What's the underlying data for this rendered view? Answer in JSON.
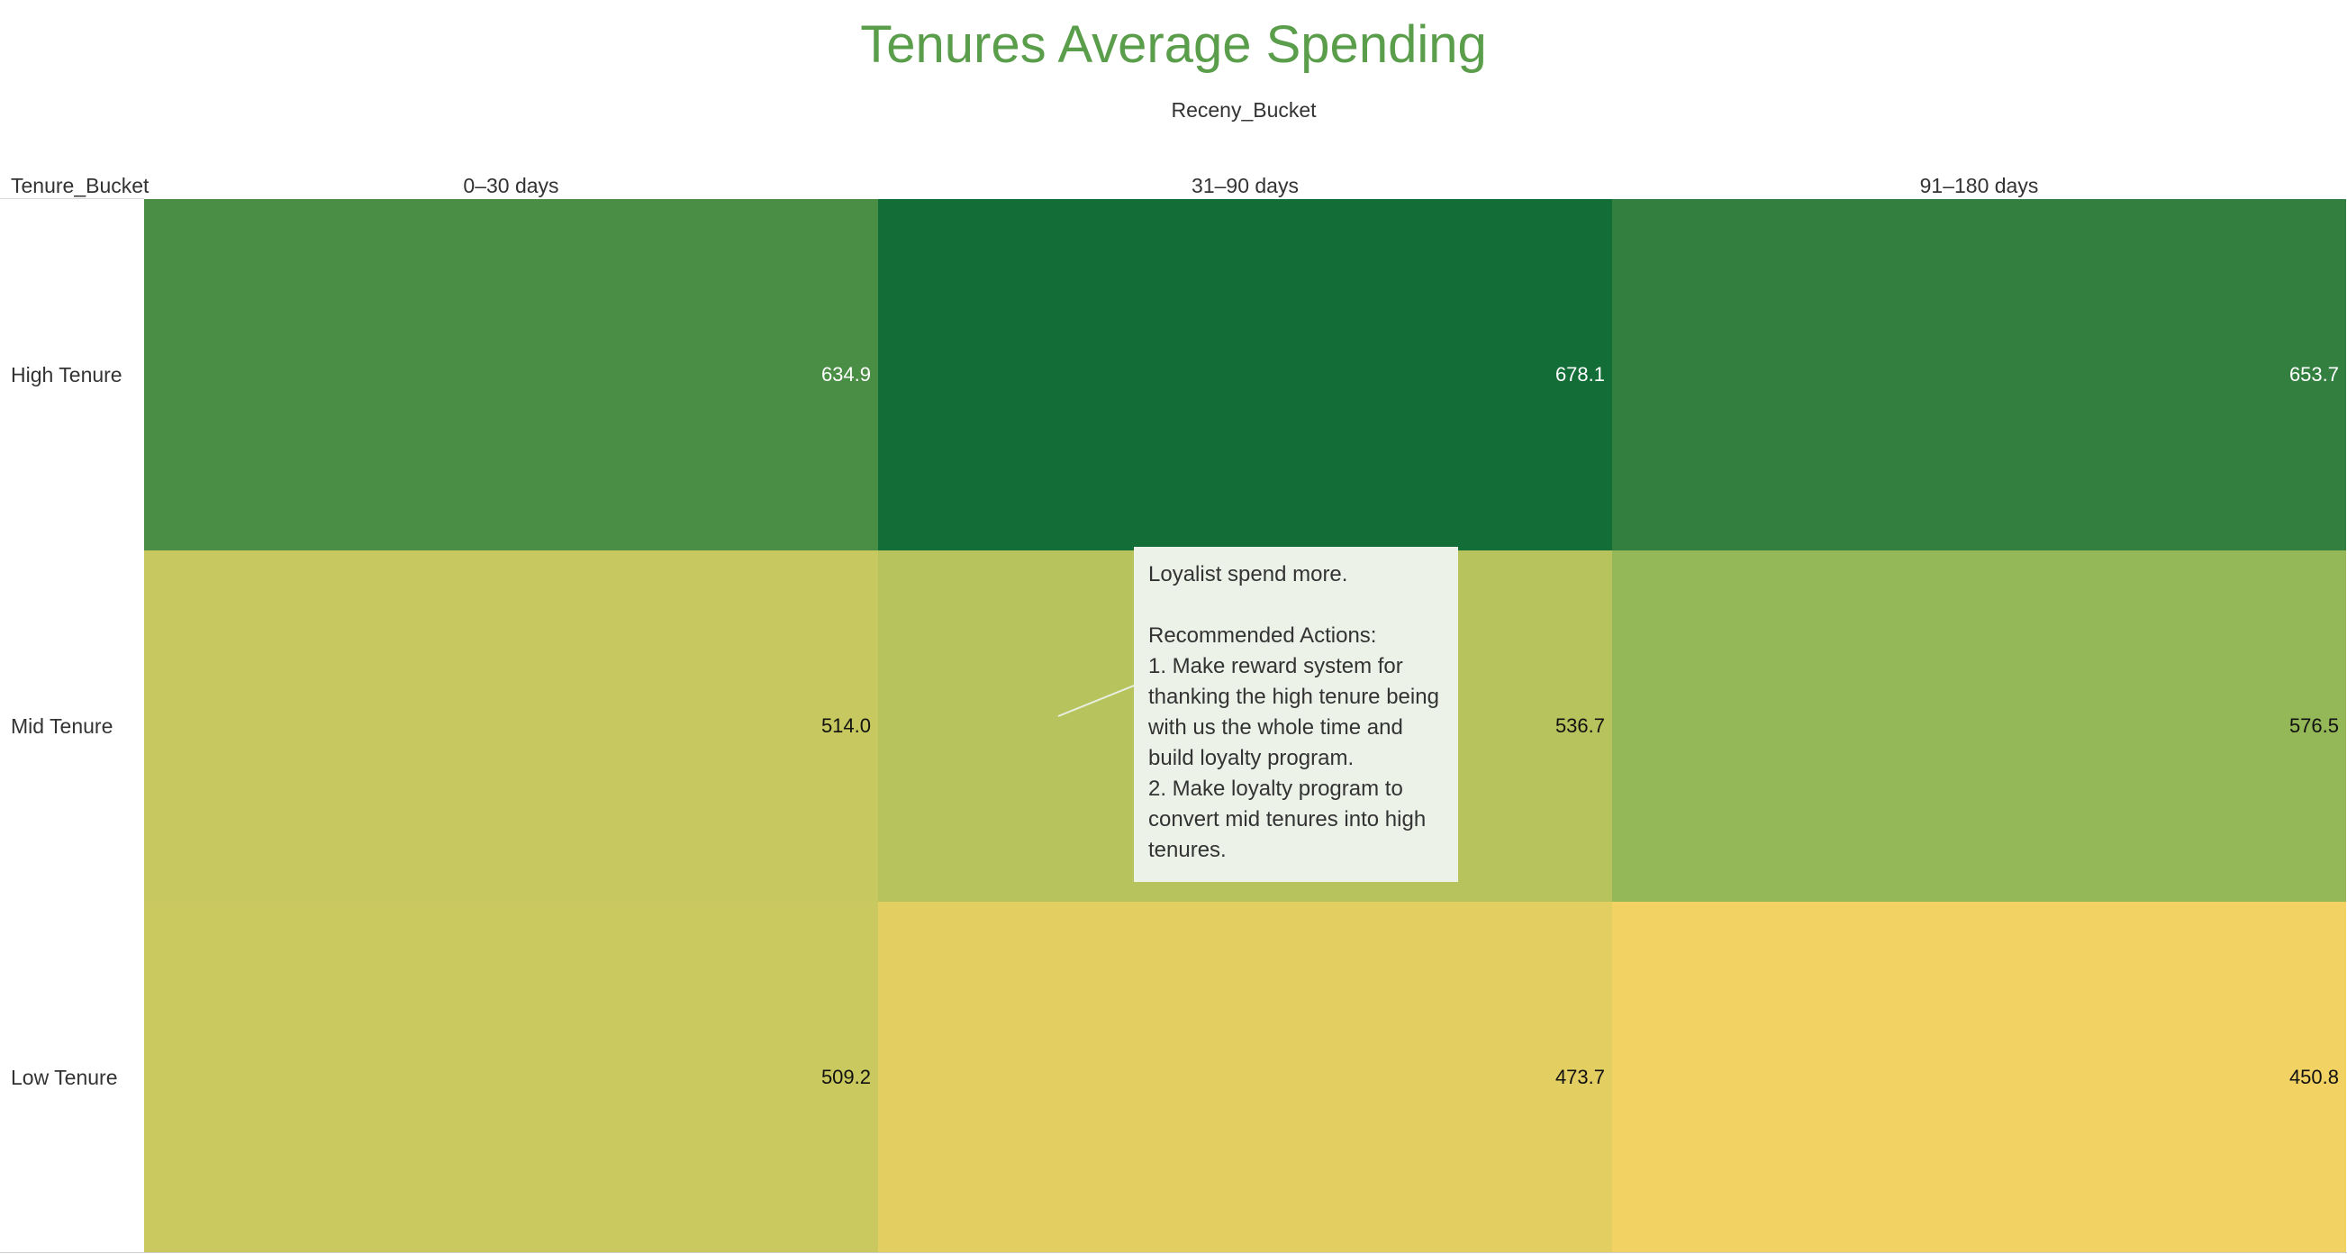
{
  "chart_data": {
    "type": "heatmap",
    "title": "Tenures Average Spending",
    "column_field": "Receny_Bucket",
    "row_field": "Tenure_Bucket",
    "columns": [
      "0–30 days",
      "31–90 days",
      "91–180 days"
    ],
    "rows": [
      "High Tenure",
      "Mid Tenure",
      "Low Tenure"
    ],
    "values": [
      [
        634.9,
        678.1,
        653.7
      ],
      [
        514.0,
        536.7,
        576.5
      ],
      [
        509.2,
        473.7,
        450.8
      ]
    ],
    "value_labels": [
      [
        "634.9",
        "678.1",
        "653.7"
      ],
      [
        "514.0",
        "536.7",
        "576.5"
      ],
      [
        "509.2",
        "473.7",
        "450.8"
      ]
    ],
    "color_scale": {
      "low": "#f3d264",
      "mid": "#a3c05c",
      "high": "#136d37"
    },
    "annotation": {
      "headline": "Loyalist spend more.",
      "subtitle": "Recommended Actions:",
      "actions": [
        "1. Make reward system for thanking the high tenure being with us the whole time and build loyalty program.",
        "2. Make loyalty program to convert mid tenures into high tenures."
      ]
    }
  }
}
